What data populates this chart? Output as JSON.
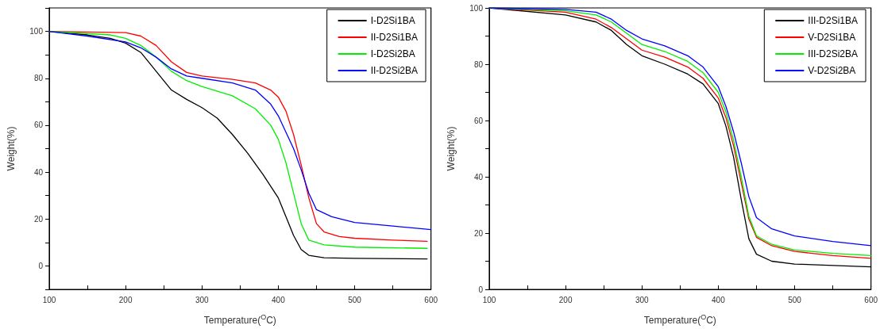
{
  "chart_data": [
    {
      "type": "line",
      "xlabel": "Temperature($^{O}$C)",
      "ylabel": "Weight(%)",
      "xlim": [
        100,
        600
      ],
      "xticks": [
        100,
        200,
        300,
        400,
        500,
        600
      ],
      "ylim": [
        -10,
        110
      ],
      "yticks": [
        0,
        20,
        40,
        60,
        80,
        100
      ],
      "grid": false,
      "legend": "top right",
      "marker": "none",
      "line_style": "solid",
      "series": [
        {
          "name": "I-D2Si1BA",
          "color": "#000000",
          "x": [
            100,
            150,
            180,
            200,
            220,
            240,
            260,
            280,
            300,
            320,
            340,
            360,
            380,
            400,
            410,
            420,
            430,
            440,
            460,
            500,
            595
          ],
          "values": [
            100,
            98.5,
            97,
            95,
            91,
            83,
            75,
            71,
            67.5,
            63,
            56,
            48,
            39,
            29,
            21,
            13,
            7,
            4.5,
            3.5,
            3.2,
            3
          ]
        },
        {
          "name": "II-D2Si1BA",
          "color": "#ff0000",
          "x": [
            100,
            200,
            220,
            240,
            260,
            280,
            300,
            340,
            370,
            390,
            400,
            410,
            420,
            430,
            440,
            450,
            460,
            480,
            500,
            550,
            595
          ],
          "values": [
            100,
            99.5,
            98,
            94,
            87,
            82.5,
            81,
            79.5,
            78,
            75,
            72,
            66,
            56,
            43,
            29,
            18,
            14.5,
            12.5,
            11.8,
            11,
            10.5
          ]
        },
        {
          "name": "I-D2Si2BA",
          "color": "#00ee00",
          "x": [
            100,
            180,
            200,
            220,
            240,
            260,
            280,
            300,
            340,
            370,
            390,
            400,
            410,
            420,
            430,
            440,
            460,
            500,
            595
          ],
          "values": [
            100,
            98.5,
            97,
            94,
            89,
            83,
            79,
            76.5,
            72.5,
            67,
            60,
            54,
            44,
            31,
            18,
            11,
            9,
            8,
            7.5
          ]
        },
        {
          "name": "II-D2Si2BA",
          "color": "#0000ff",
          "x": [
            100,
            150,
            200,
            220,
            240,
            260,
            280,
            300,
            340,
            370,
            390,
            400,
            410,
            420,
            430,
            440,
            450,
            470,
            500,
            550,
            600
          ],
          "values": [
            100,
            98,
            95.5,
            93,
            89,
            84,
            81,
            80,
            78,
            75,
            69,
            64,
            57,
            50,
            41,
            31,
            24,
            21,
            18.5,
            17,
            15.5
          ]
        }
      ]
    },
    {
      "type": "line",
      "xlabel": "Temperature($^{O}$C)",
      "ylabel": "Weight(%)",
      "xlim": [
        100,
        600
      ],
      "xticks": [
        100,
        200,
        300,
        400,
        500,
        600
      ],
      "ylim": [
        0,
        100
      ],
      "yticks": [
        0,
        20,
        40,
        60,
        80,
        100
      ],
      "grid": false,
      "legend": "top right",
      "marker": "none",
      "line_style": "solid",
      "series": [
        {
          "name": "III-D2Si1BA",
          "color": "#000000",
          "x": [
            100,
            200,
            240,
            260,
            280,
            300,
            330,
            360,
            380,
            400,
            410,
            420,
            430,
            440,
            450,
            470,
            500,
            600
          ],
          "values": [
            100,
            97.5,
            95,
            92,
            87,
            83,
            80,
            76.5,
            73,
            66,
            58,
            47,
            32,
            18,
            12.5,
            10,
            9,
            8
          ]
        },
        {
          "name": "V-D2Si1BA",
          "color": "#ff0000",
          "x": [
            100,
            200,
            240,
            260,
            280,
            300,
            330,
            360,
            380,
            400,
            410,
            420,
            430,
            440,
            450,
            470,
            500,
            550,
            600
          ],
          "values": [
            100,
            98.5,
            96,
            93,
            89,
            85,
            82.5,
            79,
            75,
            68,
            61,
            51,
            38,
            25,
            18.5,
            15.5,
            13.5,
            12,
            11
          ]
        },
        {
          "name": "III-D2Si2BA",
          "color": "#00ee00",
          "x": [
            100,
            200,
            240,
            260,
            280,
            300,
            330,
            360,
            380,
            400,
            410,
            420,
            430,
            440,
            450,
            470,
            500,
            550,
            600
          ],
          "values": [
            100,
            99,
            97.5,
            95,
            91,
            87,
            84.5,
            81,
            77,
            70,
            63,
            53,
            40,
            26,
            19,
            16,
            14,
            12.8,
            12
          ]
        },
        {
          "name": "V-D2Si2BA",
          "color": "#0000ff",
          "x": [
            100,
            200,
            240,
            260,
            280,
            300,
            330,
            360,
            380,
            400,
            410,
            420,
            430,
            440,
            450,
            470,
            500,
            550,
            600
          ],
          "values": [
            100,
            99.5,
            98.5,
            96,
            92,
            89,
            86.5,
            83,
            79,
            72,
            65,
            56,
            45,
            33,
            25.5,
            21.5,
            19,
            17,
            15.5
          ]
        }
      ]
    }
  ]
}
